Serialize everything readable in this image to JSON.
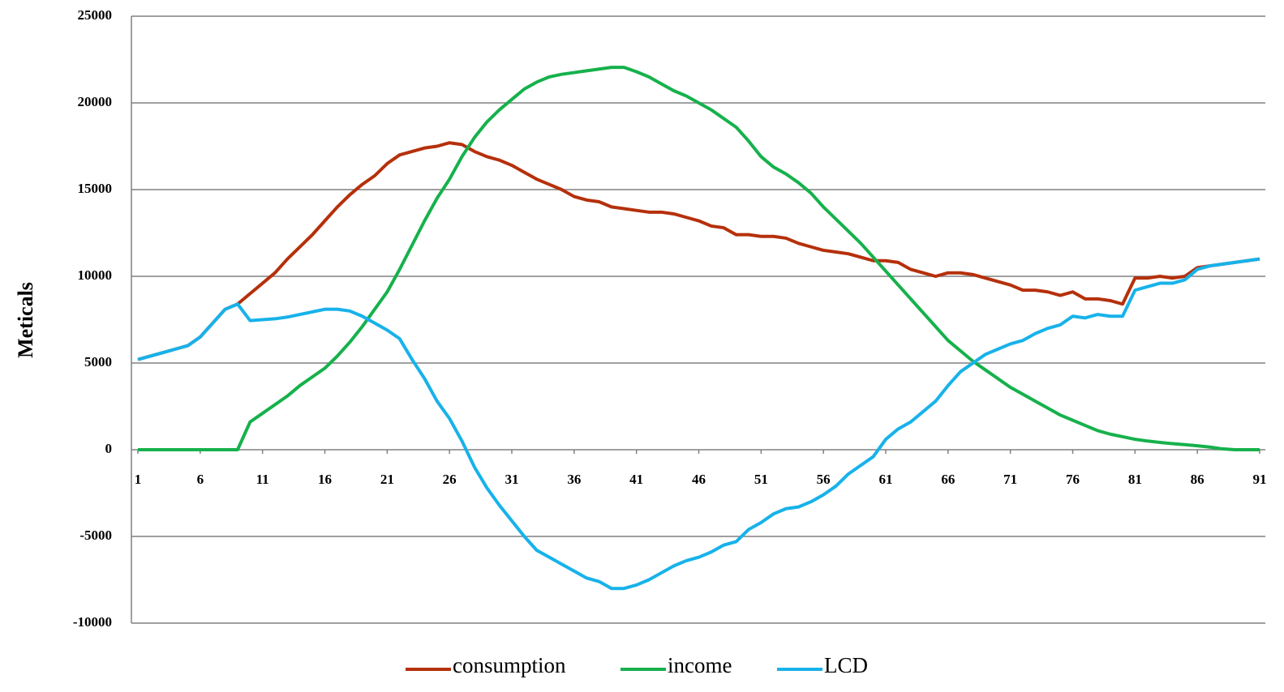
{
  "chart_data": {
    "type": "line",
    "ylabel": "Meticals",
    "x": [
      1,
      2,
      3,
      4,
      5,
      6,
      7,
      8,
      9,
      10,
      11,
      12,
      13,
      14,
      15,
      16,
      17,
      18,
      19,
      20,
      21,
      22,
      23,
      24,
      25,
      26,
      27,
      28,
      29,
      30,
      31,
      32,
      33,
      34,
      35,
      36,
      37,
      38,
      39,
      40,
      41,
      42,
      43,
      44,
      45,
      46,
      47,
      48,
      49,
      50,
      51,
      52,
      53,
      54,
      55,
      56,
      57,
      58,
      59,
      60,
      61,
      62,
      63,
      64,
      65,
      66,
      67,
      68,
      69,
      70,
      71,
      72,
      73,
      74,
      75,
      76,
      77,
      78,
      79,
      80,
      81,
      82,
      83,
      84,
      85,
      86,
      87,
      88,
      89,
      90,
      91
    ],
    "xlim": [
      1,
      91
    ],
    "xticks": [
      1,
      6,
      11,
      16,
      21,
      26,
      31,
      36,
      41,
      46,
      51,
      56,
      61,
      66,
      71,
      76,
      81,
      86,
      91
    ],
    "ylim": [
      -10000,
      25000
    ],
    "yticks": [
      -10000,
      -5000,
      0,
      5000,
      10000,
      15000,
      20000,
      25000
    ],
    "grid": true,
    "series": [
      {
        "name": "consumption",
        "color": "#b5300b",
        "values": [
          5200,
          5400,
          5600,
          5800,
          6000,
          6500,
          7300,
          8100,
          8400,
          9000,
          9600,
          10200,
          11000,
          11700,
          12400,
          13200,
          14000,
          14700,
          15300,
          15800,
          16500,
          17000,
          17200,
          17400,
          17500,
          17700,
          17600,
          17200,
          16900,
          16700,
          16400,
          16000,
          15600,
          15300,
          15000,
          14600,
          14400,
          14300,
          14000,
          13900,
          13800,
          13700,
          13700,
          13600,
          13400,
          13200,
          12900,
          12800,
          12400,
          12400,
          12300,
          12300,
          12200,
          11900,
          11700,
          11500,
          11400,
          11300,
          11100,
          10900,
          10900,
          10800,
          10400,
          10200,
          10000,
          10200,
          10200,
          10100,
          9900,
          9700,
          9500,
          9200,
          9200,
          9100,
          8900,
          9100,
          8700,
          8700,
          8600,
          8400,
          9900,
          9900,
          10000,
          9900,
          10000,
          10500,
          10600,
          10700,
          10800,
          10900,
          11000
        ]
      },
      {
        "name": "income",
        "color": "#16b14c",
        "values": [
          0,
          0,
          0,
          0,
          0,
          0,
          0,
          0,
          0,
          1600,
          2100,
          2600,
          3100,
          3700,
          4200,
          4700,
          5400,
          6200,
          7100,
          8100,
          9100,
          10400,
          11800,
          13200,
          14500,
          15600,
          16900,
          18000,
          18900,
          19600,
          20200,
          20800,
          21200,
          21500,
          21650,
          21750,
          21850,
          21950,
          22050,
          22050,
          21800,
          21500,
          21100,
          20700,
          20400,
          20000,
          19600,
          19100,
          18600,
          17800,
          16900,
          16300,
          15900,
          15400,
          14800,
          14000,
          13300,
          12600,
          11900,
          11100,
          10300,
          9500,
          8700,
          7900,
          7100,
          6300,
          5700,
          5100,
          4600,
          4100,
          3600,
          3200,
          2800,
          2400,
          2000,
          1700,
          1400,
          1100,
          900,
          750,
          600,
          500,
          420,
          350,
          290,
          230,
          150,
          50,
          0,
          0,
          0
        ]
      },
      {
        "name": "LCD",
        "color": "#17b2ea",
        "values": [
          5200,
          5400,
          5600,
          5800,
          6000,
          6500,
          7300,
          8100,
          8400,
          7450,
          7500,
          7550,
          7650,
          7800,
          7950,
          8100,
          8100,
          8000,
          7700,
          7300,
          6900,
          6400,
          5200,
          4100,
          2800,
          1800,
          500,
          -1000,
          -2200,
          -3200,
          -4100,
          -5000,
          -5800,
          -6200,
          -6600,
          -7000,
          -7400,
          -7600,
          -8000,
          -8000,
          -7800,
          -7500,
          -7100,
          -6700,
          -6400,
          -6200,
          -5900,
          -5500,
          -5300,
          -4600,
          -4200,
          -3700,
          -3400,
          -3300,
          -3000,
          -2600,
          -2100,
          -1400,
          -900,
          -400,
          600,
          1200,
          1600,
          2200,
          2800,
          3700,
          4500,
          5000,
          5500,
          5800,
          6100,
          6300,
          6700,
          7000,
          7200,
          7700,
          7600,
          7800,
          7700,
          7700,
          9200,
          9400,
          9600,
          9600,
          9800,
          10400,
          10600,
          10700,
          10800,
          10900,
          11000
        ]
      }
    ]
  }
}
